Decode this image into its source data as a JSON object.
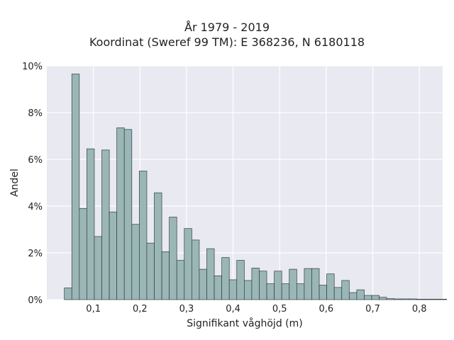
{
  "chart_data": {
    "type": "bar",
    "title": "År 1979 - 2019",
    "subtitle": "Koordinat (Sweref 99 TM): E 368236, N 6180118",
    "xlabel": "Signifikant våghöjd (m)",
    "ylabel": "Andel",
    "xlim": [
      0.0,
      0.85
    ],
    "ylim": [
      0,
      10
    ],
    "x_ticks": [
      0.1,
      0.2,
      0.3,
      0.4,
      0.5,
      0.6,
      0.7,
      0.8
    ],
    "x_tick_labels": [
      "0,1",
      "0,2",
      "0,3",
      "0,4",
      "0,5",
      "0,6",
      "0,7",
      "0,8"
    ],
    "y_ticks": [
      0,
      2,
      4,
      6,
      8,
      10
    ],
    "y_tick_labels": [
      "0%",
      "2%",
      "4%",
      "6%",
      "8%",
      "10%"
    ],
    "bin_width": 0.0161,
    "bin_start": 0.0376,
    "values": [
      0.5,
      9.65,
      3.9,
      6.45,
      2.7,
      6.4,
      3.75,
      7.35,
      7.28,
      3.22,
      5.5,
      2.42,
      4.57,
      2.05,
      3.53,
      1.68,
      3.04,
      2.55,
      1.3,
      2.18,
      1.02,
      1.8,
      0.85,
      1.68,
      0.82,
      1.35,
      1.22,
      0.68,
      1.22,
      0.68,
      1.3,
      0.68,
      1.33,
      1.33,
      0.62,
      1.1,
      0.52,
      0.82,
      0.3,
      0.42,
      0.18,
      0.18,
      0.1,
      0.04,
      0.03,
      0.03,
      0.03,
      0.02,
      0.02,
      0.02,
      0.02
    ],
    "grid": true,
    "legend": "none",
    "colors": {
      "plot_background": "#e9e9f1",
      "grid": "#ffffff",
      "bar_fill": "#9bb6b6",
      "bar_edge": "#2f3f3f"
    }
  }
}
